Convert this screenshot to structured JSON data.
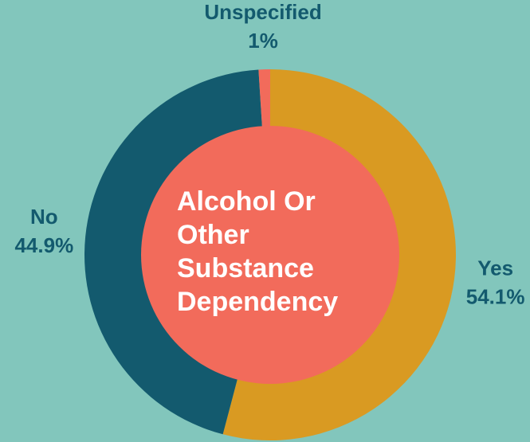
{
  "chart_data": {
    "type": "donut",
    "title": "Alcohol Or Other Substance Dependency",
    "categories": [
      "Yes",
      "No",
      "Unspecified"
    ],
    "values": [
      54.1,
      44.9,
      1
    ],
    "value_labels": [
      "54.1%",
      "44.9%",
      "1%"
    ],
    "colors": [
      "#d99a22",
      "#135a6e",
      "#f26b5b"
    ],
    "center_color": "#f26b5b"
  }
}
